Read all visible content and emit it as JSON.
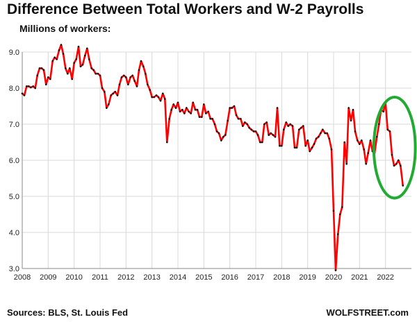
{
  "chart_data": {
    "type": "line",
    "title": "Difference Between Total Workers and W-2 Payrolls",
    "ylabel": "Millions of workers:",
    "xlabel": "",
    "ylim": [
      3.0,
      9.0
    ],
    "xlim": [
      2008,
      2023
    ],
    "y_ticks": [
      "3.0",
      "4.0",
      "5.0",
      "6.0",
      "7.0",
      "8.0",
      "9.0"
    ],
    "x_ticks": [
      "2008",
      "2009",
      "2010",
      "2011",
      "2012",
      "2013",
      "2014",
      "2015",
      "2016",
      "2017",
      "2018",
      "2019",
      "2020",
      "2021",
      "2022"
    ],
    "grid": true,
    "series": [
      {
        "color": "#ff0000",
        "points": [
          [
            2008.0,
            7.85
          ],
          [
            2008.08,
            7.8
          ],
          [
            2008.17,
            8.05
          ],
          [
            2008.25,
            8.05
          ],
          [
            2008.33,
            8.02
          ],
          [
            2008.42,
            8.05
          ],
          [
            2008.5,
            8.0
          ],
          [
            2008.58,
            8.35
          ],
          [
            2008.67,
            8.55
          ],
          [
            2008.75,
            8.55
          ],
          [
            2008.83,
            8.5
          ],
          [
            2008.92,
            8.1
          ],
          [
            2009.0,
            8.3
          ],
          [
            2009.08,
            8.25
          ],
          [
            2009.17,
            8.75
          ],
          [
            2009.25,
            8.85
          ],
          [
            2009.33,
            8.8
          ],
          [
            2009.42,
            9.05
          ],
          [
            2009.5,
            9.2
          ],
          [
            2009.58,
            8.95
          ],
          [
            2009.67,
            8.55
          ],
          [
            2009.75,
            8.4
          ],
          [
            2009.83,
            8.55
          ],
          [
            2009.92,
            8.25
          ],
          [
            2010.0,
            8.7
          ],
          [
            2010.08,
            8.8
          ],
          [
            2010.17,
            9.15
          ],
          [
            2010.25,
            8.6
          ],
          [
            2010.33,
            8.65
          ],
          [
            2010.42,
            8.9
          ],
          [
            2010.5,
            9.1
          ],
          [
            2010.58,
            8.8
          ],
          [
            2010.67,
            8.55
          ],
          [
            2010.75,
            8.5
          ],
          [
            2010.83,
            8.4
          ],
          [
            2010.92,
            8.4
          ],
          [
            2011.0,
            8.35
          ],
          [
            2011.08,
            8.0
          ],
          [
            2011.17,
            7.9
          ],
          [
            2011.25,
            7.45
          ],
          [
            2011.33,
            7.55
          ],
          [
            2011.42,
            7.8
          ],
          [
            2011.5,
            7.85
          ],
          [
            2011.58,
            7.9
          ],
          [
            2011.67,
            7.8
          ],
          [
            2011.75,
            8.1
          ],
          [
            2011.83,
            8.3
          ],
          [
            2011.92,
            8.35
          ],
          [
            2012.0,
            8.3
          ],
          [
            2012.08,
            8.1
          ],
          [
            2012.17,
            8.3
          ],
          [
            2012.25,
            8.35
          ],
          [
            2012.33,
            8.2
          ],
          [
            2012.42,
            8.05
          ],
          [
            2012.5,
            8.5
          ],
          [
            2012.58,
            8.75
          ],
          [
            2012.67,
            8.6
          ],
          [
            2012.75,
            8.4
          ],
          [
            2012.83,
            8.1
          ],
          [
            2012.92,
            7.95
          ],
          [
            2013.0,
            7.75
          ],
          [
            2013.08,
            7.75
          ],
          [
            2013.17,
            7.8
          ],
          [
            2013.25,
            7.75
          ],
          [
            2013.33,
            7.65
          ],
          [
            2013.42,
            7.85
          ],
          [
            2013.5,
            7.7
          ],
          [
            2013.58,
            6.5
          ],
          [
            2013.67,
            7.15
          ],
          [
            2013.75,
            7.4
          ],
          [
            2013.83,
            7.55
          ],
          [
            2013.92,
            7.45
          ],
          [
            2014.0,
            7.6
          ],
          [
            2014.08,
            7.35
          ],
          [
            2014.17,
            7.4
          ],
          [
            2014.25,
            7.3
          ],
          [
            2014.33,
            7.45
          ],
          [
            2014.42,
            7.35
          ],
          [
            2014.5,
            7.3
          ],
          [
            2014.58,
            7.6
          ],
          [
            2014.67,
            7.4
          ],
          [
            2014.75,
            7.4
          ],
          [
            2014.83,
            7.2
          ],
          [
            2014.92,
            7.2
          ],
          [
            2015.0,
            7.55
          ],
          [
            2015.08,
            7.3
          ],
          [
            2015.17,
            7.35
          ],
          [
            2015.25,
            7.15
          ],
          [
            2015.33,
            7.15
          ],
          [
            2015.42,
            7.0
          ],
          [
            2015.5,
            6.8
          ],
          [
            2015.58,
            6.75
          ],
          [
            2015.67,
            6.55
          ],
          [
            2015.75,
            6.65
          ],
          [
            2015.83,
            6.7
          ],
          [
            2015.92,
            7.1
          ],
          [
            2016.0,
            7.45
          ],
          [
            2016.08,
            7.45
          ],
          [
            2016.17,
            7.5
          ],
          [
            2016.25,
            7.25
          ],
          [
            2016.33,
            7.15
          ],
          [
            2016.42,
            7.15
          ],
          [
            2016.5,
            6.95
          ],
          [
            2016.58,
            7.05
          ],
          [
            2016.67,
            7.0
          ],
          [
            2016.75,
            6.9
          ],
          [
            2016.83,
            6.85
          ],
          [
            2016.92,
            6.8
          ],
          [
            2017.0,
            6.8
          ],
          [
            2017.08,
            6.7
          ],
          [
            2017.17,
            6.5
          ],
          [
            2017.25,
            6.5
          ],
          [
            2017.33,
            7.0
          ],
          [
            2017.42,
            7.05
          ],
          [
            2017.5,
            6.7
          ],
          [
            2017.58,
            6.75
          ],
          [
            2017.67,
            6.7
          ],
          [
            2017.75,
            6.65
          ],
          [
            2017.83,
            7.45
          ],
          [
            2017.92,
            6.4
          ],
          [
            2018.0,
            6.4
          ],
          [
            2018.08,
            6.85
          ],
          [
            2018.17,
            7.05
          ],
          [
            2018.25,
            6.95
          ],
          [
            2018.33,
            7.0
          ],
          [
            2018.42,
            6.95
          ],
          [
            2018.5,
            6.35
          ],
          [
            2018.58,
            6.35
          ],
          [
            2018.67,
            6.85
          ],
          [
            2018.75,
            6.9
          ],
          [
            2018.83,
            6.95
          ],
          [
            2018.92,
            6.4
          ],
          [
            2019.0,
            6.55
          ],
          [
            2019.08,
            6.25
          ],
          [
            2019.17,
            6.35
          ],
          [
            2019.25,
            6.45
          ],
          [
            2019.33,
            6.6
          ],
          [
            2019.42,
            6.65
          ],
          [
            2019.5,
            6.75
          ],
          [
            2019.58,
            6.85
          ],
          [
            2019.67,
            6.75
          ],
          [
            2019.75,
            6.75
          ],
          [
            2019.83,
            6.6
          ],
          [
            2019.92,
            6.3
          ],
          [
            2020.0,
            4.6
          ],
          [
            2020.08,
            2.95
          ],
          [
            2020.17,
            3.95
          ],
          [
            2020.25,
            4.5
          ],
          [
            2020.33,
            4.7
          ],
          [
            2020.42,
            6.5
          ],
          [
            2020.5,
            5.9
          ],
          [
            2020.58,
            7.45
          ],
          [
            2020.67,
            7.1
          ],
          [
            2020.75,
            7.4
          ],
          [
            2020.83,
            6.8
          ],
          [
            2020.92,
            6.55
          ],
          [
            2021.0,
            6.45
          ],
          [
            2021.08,
            6.55
          ],
          [
            2021.17,
            6.3
          ],
          [
            2021.25,
            5.9
          ],
          [
            2021.33,
            6.2
          ],
          [
            2021.42,
            6.55
          ],
          [
            2021.5,
            6.25
          ],
          [
            2021.58,
            6.2
          ],
          [
            2021.67,
            6.65
          ],
          [
            2021.75,
            7.0
          ],
          [
            2021.83,
            7.4
          ],
          [
            2021.92,
            7.35
          ],
          [
            2022.0,
            7.6
          ],
          [
            2022.08,
            6.85
          ],
          [
            2022.17,
            6.8
          ],
          [
            2022.25,
            6.15
          ],
          [
            2022.33,
            5.85
          ],
          [
            2022.42,
            5.9
          ],
          [
            2022.5,
            6.0
          ],
          [
            2022.58,
            5.85
          ],
          [
            2022.67,
            5.3
          ]
        ]
      }
    ],
    "annotation": {
      "type": "ellipse",
      "color": "#22aa33",
      "cx": 2022.35,
      "cy": 6.35,
      "rx_years": 0.8,
      "ry_units": 1.4
    }
  },
  "footer": {
    "source": "Sources: BLS, St. Louis Fed",
    "brand": "WOLFSTREET.com"
  }
}
